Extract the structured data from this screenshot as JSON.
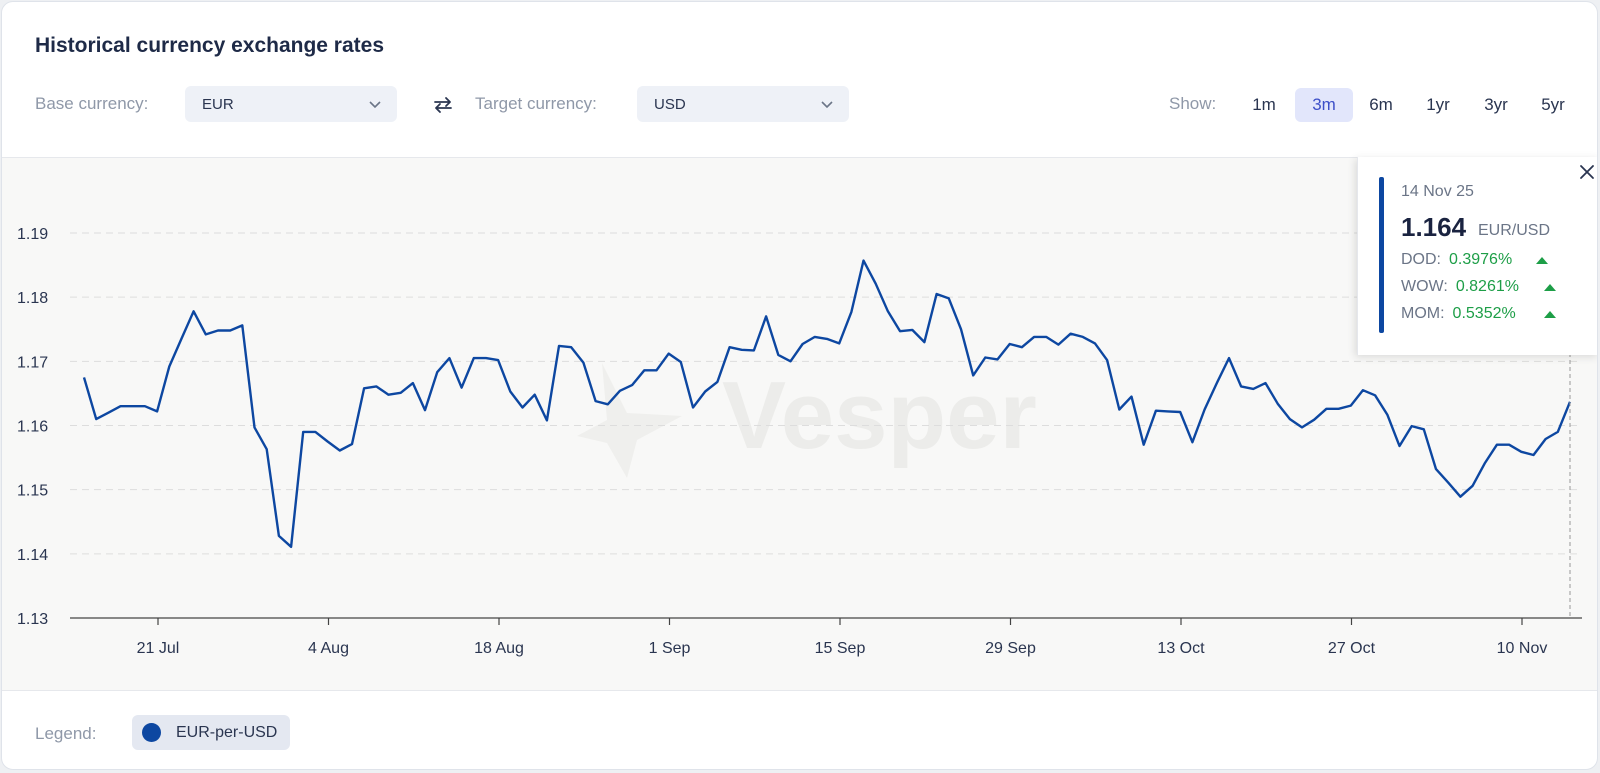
{
  "header": {
    "title": "Historical currency exchange rates",
    "base_label": "Base currency:",
    "base_value": "EUR",
    "target_label": "Target currency:",
    "target_value": "USD",
    "show_label": "Show:",
    "ranges": [
      "1m",
      "3m",
      "6m",
      "1yr",
      "3yr",
      "5yr"
    ],
    "active_range": "3m"
  },
  "tooltip": {
    "date": "14 Nov 25",
    "value": "1.164",
    "pair": "EUR/USD",
    "rows": [
      {
        "label": "DOD:",
        "pct": "0.3976%"
      },
      {
        "label": "WOW:",
        "pct": "0.8261%"
      },
      {
        "label": "MOM:",
        "pct": "0.5352%"
      }
    ]
  },
  "legend": {
    "label": "Legend:",
    "series_name": "EUR-per-USD",
    "color": "#0d47a1"
  },
  "watermark": "Vesper",
  "chart_data": {
    "type": "line",
    "ylim": [
      1.13,
      1.19
    ],
    "yticks": [
      "1.19",
      "1.18",
      "1.17",
      "1.16",
      "1.15",
      "1.14",
      "1.13"
    ],
    "xticks": [
      "21 Jul",
      "4 Aug",
      "18 Aug",
      "1 Sep",
      "15 Sep",
      "29 Sep",
      "13 Oct",
      "27 Oct",
      "10 Nov"
    ],
    "grid": "horizontal-dashed",
    "series": [
      {
        "name": "EUR-per-USD",
        "color": "#0d47a1",
        "values": [
          1.1675,
          1.161,
          1.162,
          1.163,
          1.163,
          1.163,
          1.1622,
          1.1692,
          1.1735,
          1.1778,
          1.1742,
          1.1748,
          1.1748,
          1.1756,
          1.1597,
          1.1563,
          1.1428,
          1.1411,
          1.159,
          1.159,
          1.1575,
          1.1561,
          1.1571,
          1.1658,
          1.1661,
          1.1648,
          1.1651,
          1.1666,
          1.1624,
          1.1683,
          1.1705,
          1.1659,
          1.1705,
          1.1705,
          1.1702,
          1.1653,
          1.1628,
          1.1648,
          1.1608,
          1.1724,
          1.1722,
          1.1698,
          1.1638,
          1.1633,
          1.1654,
          1.1663,
          1.1686,
          1.1686,
          1.1712,
          1.1699,
          1.1628,
          1.1653,
          1.1668,
          1.1722,
          1.1718,
          1.1717,
          1.177,
          1.171,
          1.17,
          1.1727,
          1.1738,
          1.1735,
          1.1728,
          1.1777,
          1.1857,
          1.1821,
          1.1778,
          1.1747,
          1.1749,
          1.173,
          1.1805,
          1.1798,
          1.175,
          1.1678,
          1.1706,
          1.1703,
          1.1727,
          1.1722,
          1.1738,
          1.1738,
          1.1726,
          1.1743,
          1.1738,
          1.1728,
          1.1702,
          1.1625,
          1.1645,
          1.157,
          1.1623,
          1.1622,
          1.1621,
          1.1574,
          1.1625,
          1.1666,
          1.1705,
          1.1661,
          1.1657,
          1.1666,
          1.1634,
          1.161,
          1.1597,
          1.1609,
          1.1626,
          1.1626,
          1.1631,
          1.1655,
          1.1647,
          1.1617,
          1.1568,
          1.1599,
          1.1594,
          1.1532,
          1.1511,
          1.1489,
          1.1506,
          1.1541,
          1.157,
          1.157,
          1.1559,
          1.1554,
          1.1579,
          1.159,
          1.1637
        ]
      }
    ]
  }
}
